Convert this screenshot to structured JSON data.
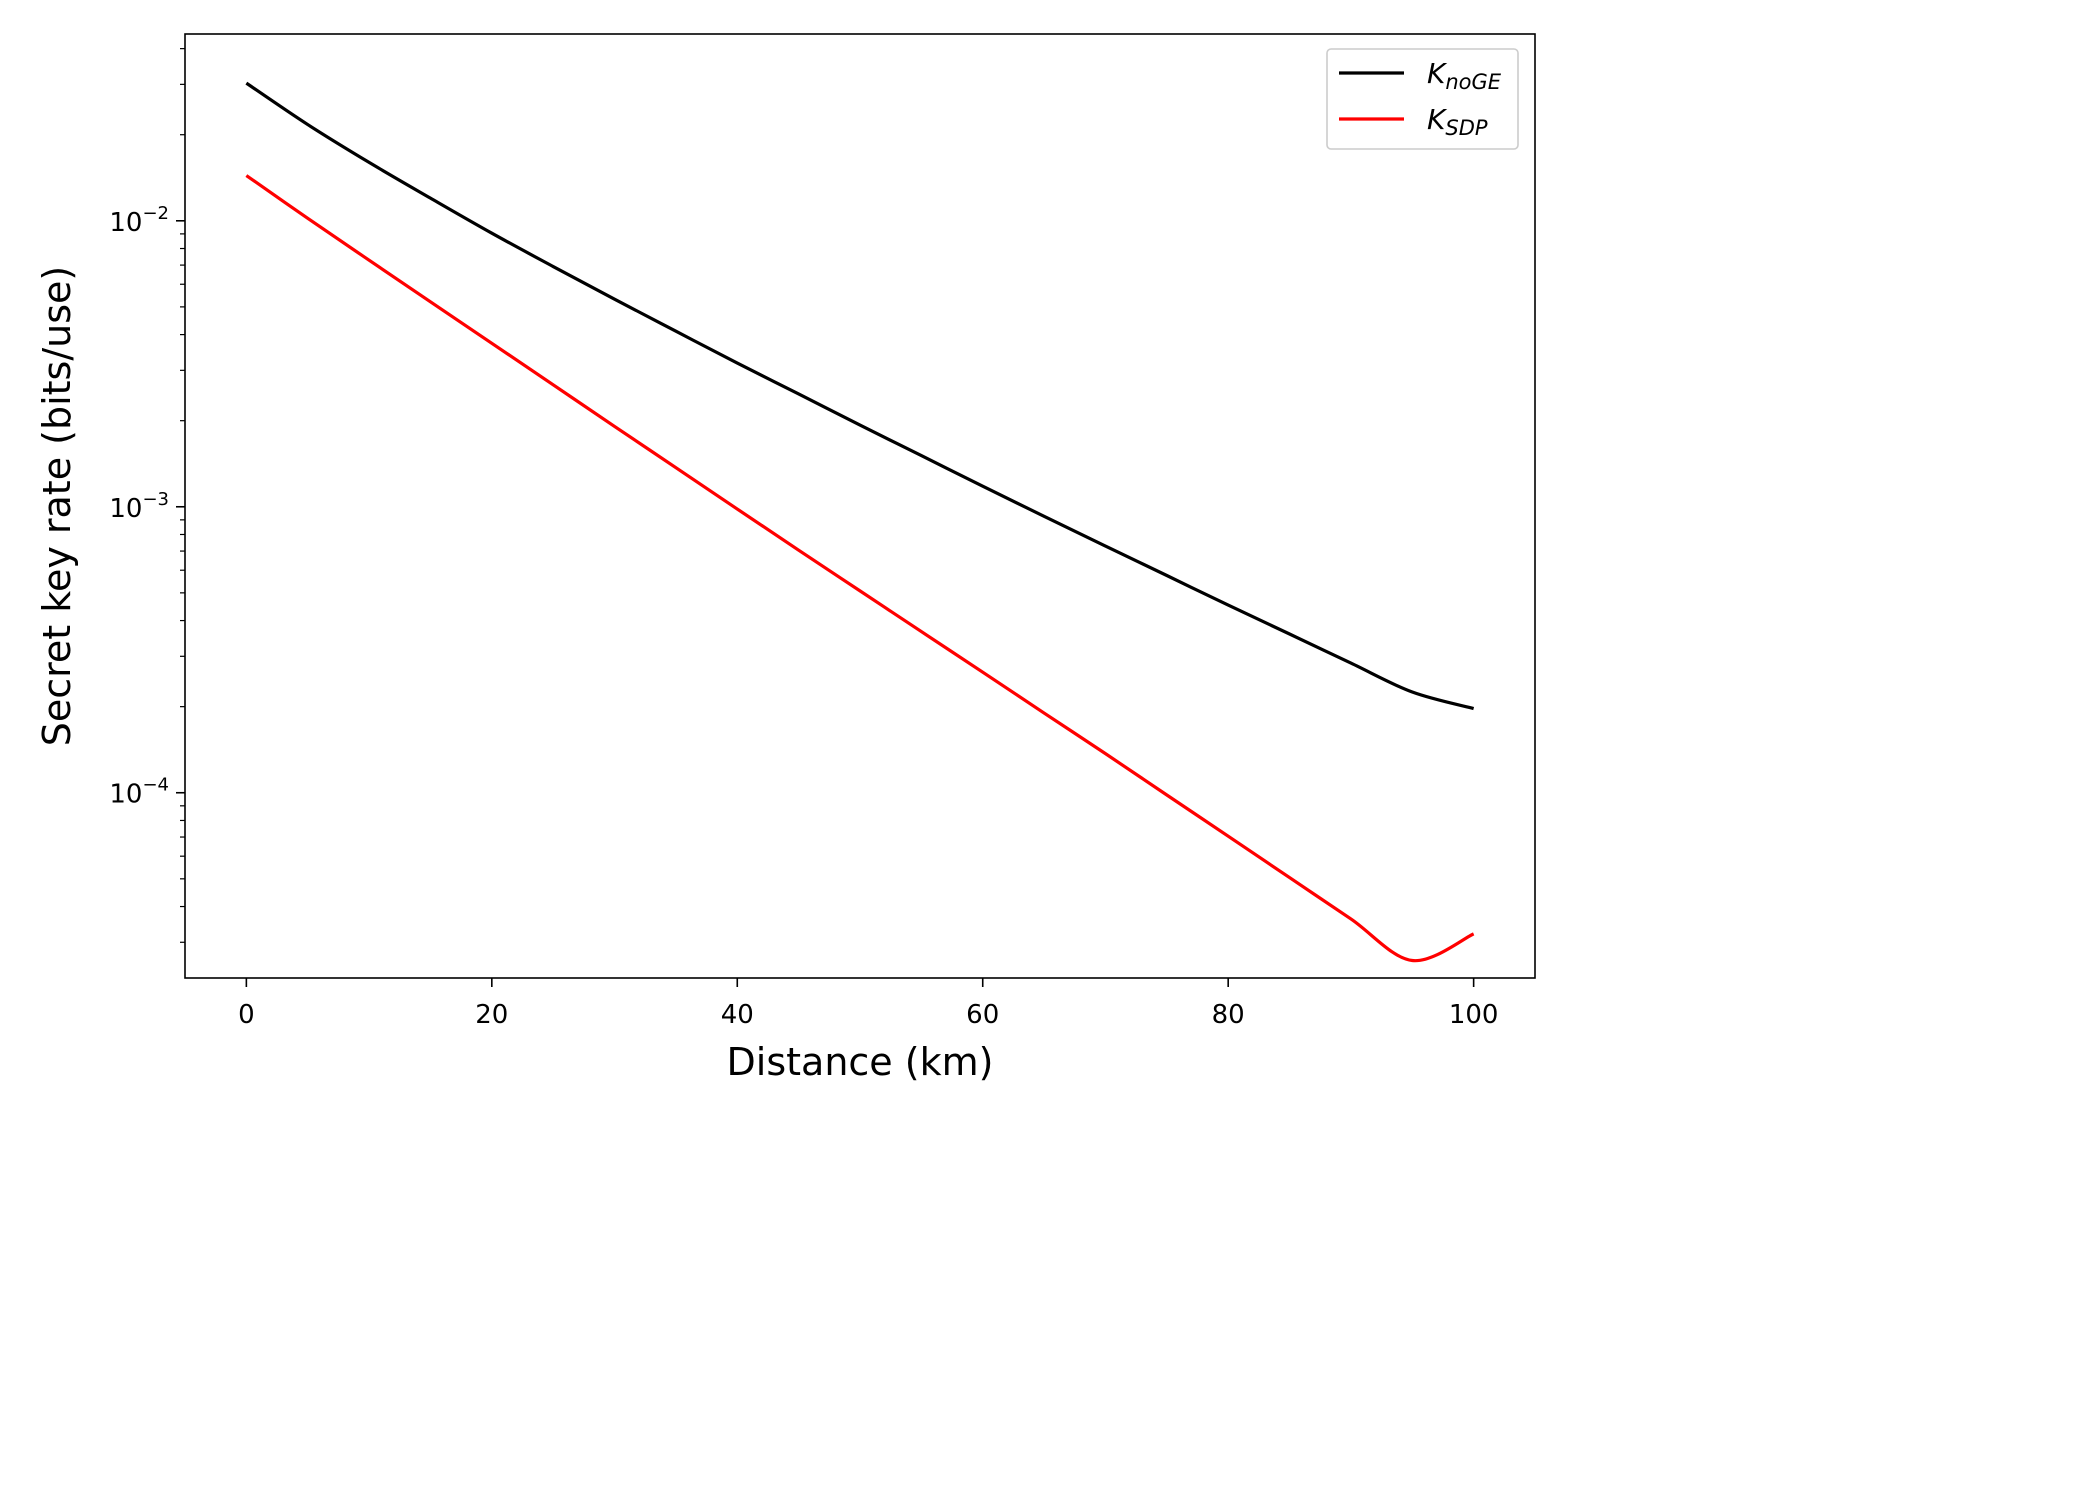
{
  "chart_data": {
    "type": "line",
    "title": "",
    "xlabel": "Distance (km)",
    "ylabel": "Secret key rate (bits/use)",
    "xlim": [
      -5,
      105
    ],
    "ylim": [
      2.25e-05,
      0.045
    ],
    "y_scale": "log",
    "grid": false,
    "legend_position": "top-right",
    "x_ticks": [
      {
        "value": 0,
        "label": "0"
      },
      {
        "value": 20,
        "label": "20"
      },
      {
        "value": 40,
        "label": "40"
      },
      {
        "value": 60,
        "label": "60"
      },
      {
        "value": 80,
        "label": "80"
      },
      {
        "value": 100,
        "label": "100"
      }
    ],
    "y_ticks": [
      {
        "value": 0.01,
        "base": "10",
        "exponent": "−2"
      },
      {
        "value": 0.001,
        "base": "10",
        "exponent": "−3"
      },
      {
        "value": 0.0001,
        "base": "10",
        "exponent": "−4"
      }
    ],
    "x": [
      0,
      5,
      10,
      15,
      20,
      25,
      30,
      35,
      40,
      45,
      50,
      55,
      60,
      65,
      70,
      75,
      80,
      85,
      90,
      95,
      100
    ],
    "series": [
      {
        "name_main": "K",
        "name_sub": "noGE",
        "color": "#000000",
        "values": [
          0.0303,
          0.0217,
          0.016,
          0.012,
          0.00905,
          0.00692,
          0.00532,
          0.00411,
          0.00318,
          0.00248,
          0.00193,
          0.00151,
          0.00118,
          0.000926,
          0.000729,
          0.000575,
          0.000453,
          0.000359,
          0.000284,
          0.000225,
          0.000197
        ]
      },
      {
        "name_main": "K",
        "name_sub": "SDP",
        "color": "#ff0000",
        "values": [
          0.0144,
          0.0102,
          0.00728,
          0.00521,
          0.00373,
          0.00267,
          0.00191,
          0.00137,
          0.000982,
          0.000705,
          0.000508,
          0.000366,
          0.000264,
          0.00019,
          0.000137,
          9.82e-05,
          7.05e-05,
          5.05e-05,
          3.62e-05,
          2.59e-05,
          3.21e-05
        ]
      }
    ]
  }
}
